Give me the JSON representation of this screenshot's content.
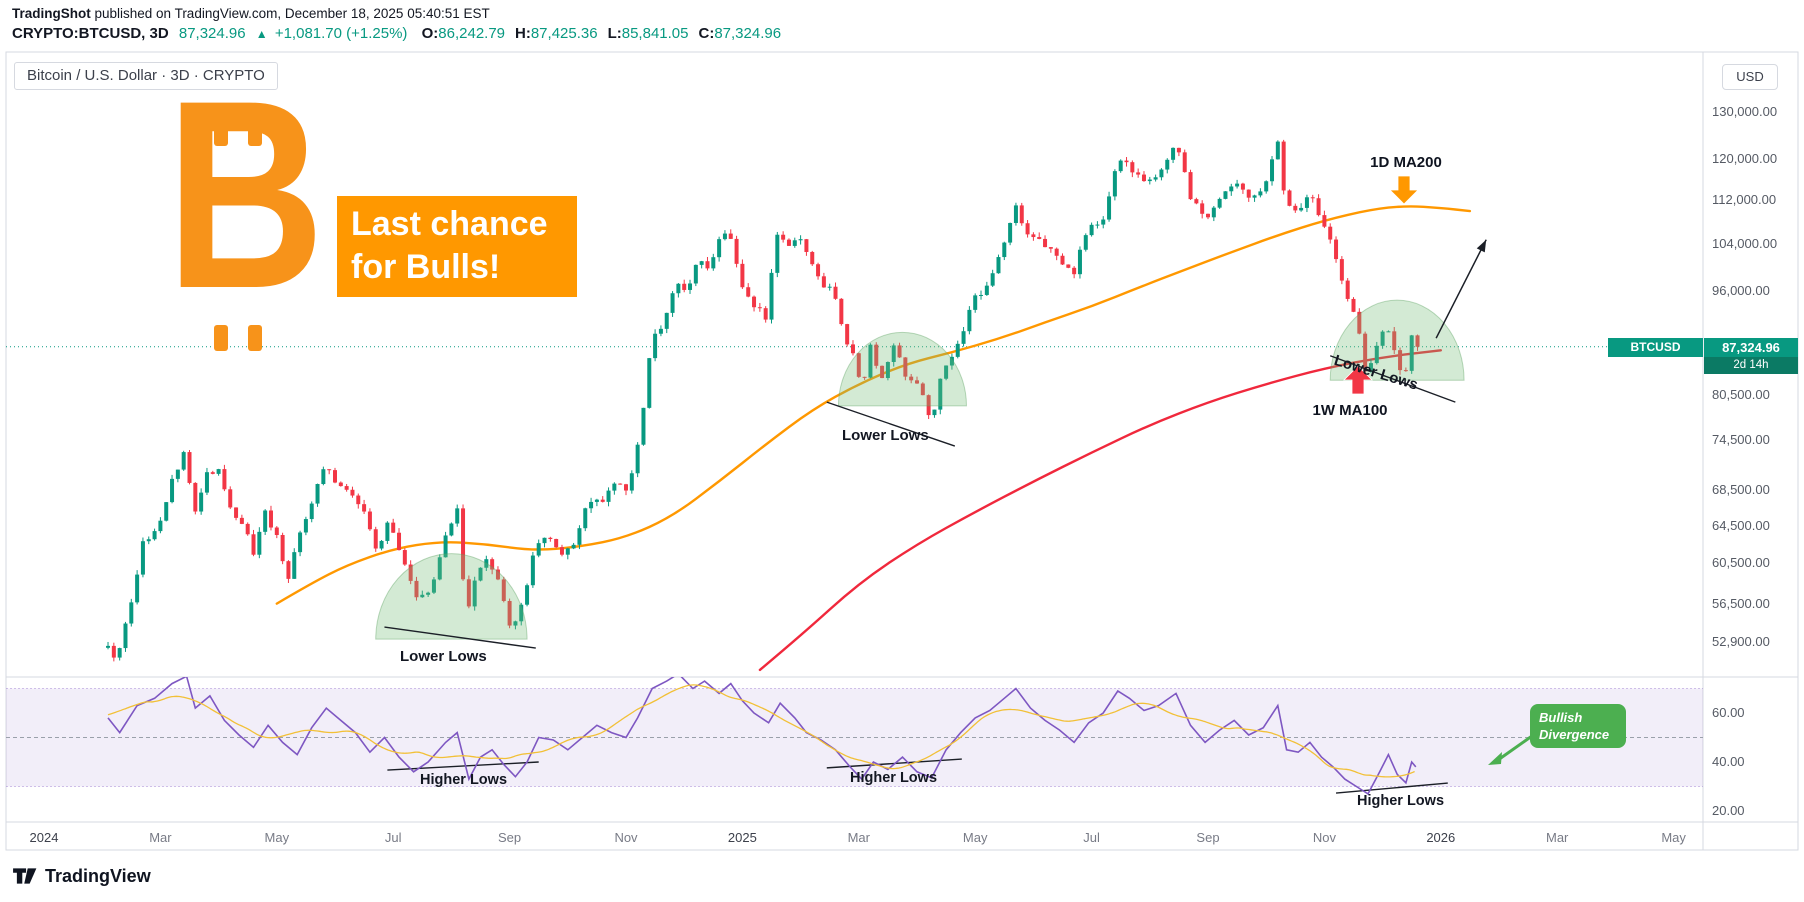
{
  "meta": {
    "publisher": "TradingShot",
    "published_suffix": " published on TradingView.com, December 18, 2025 05:40:51 EST"
  },
  "quote_bar": {
    "symbol_interval": "CRYPTO:BTCUSD, 3D",
    "price": "87,324.96",
    "direction_arrow": "▲",
    "change": "+1,081.70 (+1.25%)",
    "ohlc": [
      {
        "label": "O",
        "value": "86,242.79"
      },
      {
        "label": "H",
        "value": "87,425.36"
      },
      {
        "label": "L",
        "value": "85,841.05"
      },
      {
        "label": "C",
        "value": "87,324.96"
      }
    ]
  },
  "chart_header": {
    "legend": "Bitcoin / U.S. Dollar · 3D · CRYPTO"
  },
  "axis": {
    "currency": "USD"
  },
  "price_badge": {
    "symbol": "BTCUSD",
    "price": "87,324.96",
    "countdown": "2d 14h"
  },
  "banner": {
    "line1": "Last chance",
    "line2": "for Bulls!"
  },
  "bitcoin_logo": {
    "glyph": "B"
  },
  "annotations": {
    "ma200": "1D MA200",
    "ma100": "1W MA100",
    "lower_lows": "Lower Lows",
    "higher_lows": "Higher Lows",
    "divergence_l1": "Bullish",
    "divergence_l2": "Divergence"
  },
  "footer": {
    "brand": "TradingView"
  },
  "colors": {
    "up": "#089981",
    "down": "#f23645",
    "ma200": "#ff9800",
    "ma100": "#f0283c",
    "rsi": "#7e57c2",
    "rsi_ma": "#f2c037",
    "accent_orange": "#f7931a",
    "divergence_green": "#4caf50",
    "arc_green": "rgba(119,190,122,0.32)",
    "arc_edge": "rgba(90,160,95,0.4)",
    "grid": "#d6d9e0"
  },
  "chart_data": {
    "type": "candlestick",
    "symbol": "BTCUSD",
    "timeframe": "3D",
    "scale": "log",
    "current_price": 87324.96,
    "x_axis": {
      "unit": "months_since_2024_01",
      "labels": [
        {
          "label": "2024",
          "t": 0,
          "year": true
        },
        {
          "label": "Mar",
          "t": 2,
          "year": false
        },
        {
          "label": "May",
          "t": 4,
          "year": false
        },
        {
          "label": "Jul",
          "t": 6,
          "year": false
        },
        {
          "label": "Sep",
          "t": 8,
          "year": false
        },
        {
          "label": "Nov",
          "t": 10,
          "year": false
        },
        {
          "label": "2025",
          "t": 12,
          "year": true
        },
        {
          "label": "Mar",
          "t": 14,
          "year": false
        },
        {
          "label": "May",
          "t": 16,
          "year": false
        },
        {
          "label": "Jul",
          "t": 18,
          "year": false
        },
        {
          "label": "Sep",
          "t": 20,
          "year": false
        },
        {
          "label": "Nov",
          "t": 22,
          "year": false
        },
        {
          "label": "2026",
          "t": 24,
          "year": true
        },
        {
          "label": "Mar",
          "t": 26,
          "year": false
        },
        {
          "label": "May",
          "t": 28,
          "year": false
        }
      ]
    },
    "y_axis": {
      "visible_range": [
        49900,
        142000
      ],
      "ticks": [
        {
          "price": 130000,
          "label": "130,000.00"
        },
        {
          "price": 120000,
          "label": "120,000.00"
        },
        {
          "price": 112000,
          "label": "112,000.00"
        },
        {
          "price": 104000,
          "label": "104,000.00"
        },
        {
          "price": 96000,
          "label": "96,000.00"
        },
        {
          "price": 80500,
          "label": "80,500.00"
        },
        {
          "price": 74500,
          "label": "74,500.00"
        },
        {
          "price": 68500,
          "label": "68,500.00"
        },
        {
          "price": 64500,
          "label": "64,500.00"
        },
        {
          "price": 60500,
          "label": "60,500.00"
        },
        {
          "price": 56500,
          "label": "56,500.00"
        },
        {
          "price": 52900,
          "label": "52,900.00"
        }
      ]
    },
    "price_keyframes": [
      [
        1.1,
        52500
      ],
      [
        1.25,
        51200
      ],
      [
        1.45,
        55500
      ],
      [
        1.7,
        62500
      ],
      [
        1.95,
        64200
      ],
      [
        2.2,
        69500
      ],
      [
        2.42,
        73400
      ],
      [
        2.58,
        66000
      ],
      [
        2.8,
        70300
      ],
      [
        3.0,
        71300
      ],
      [
        3.2,
        66500
      ],
      [
        3.42,
        64800
      ],
      [
        3.6,
        61300
      ],
      [
        3.8,
        65800
      ],
      [
        4.0,
        63300
      ],
      [
        4.18,
        58300
      ],
      [
        4.4,
        63800
      ],
      [
        4.62,
        67300
      ],
      [
        4.82,
        71300
      ],
      [
        5.05,
        69200
      ],
      [
        5.25,
        68300
      ],
      [
        5.5,
        66300
      ],
      [
        5.7,
        61800
      ],
      [
        5.92,
        64800
      ],
      [
        6.15,
        61300
      ],
      [
        6.4,
        57000
      ],
      [
        6.65,
        57800
      ],
      [
        6.9,
        63300
      ],
      [
        7.1,
        66500
      ],
      [
        7.26,
        54800
      ],
      [
        7.42,
        59300
      ],
      [
        7.62,
        61000
      ],
      [
        7.82,
        58800
      ],
      [
        8.02,
        54200
      ],
      [
        8.22,
        56300
      ],
      [
        8.45,
        63000
      ],
      [
        8.7,
        62800
      ],
      [
        8.92,
        61000
      ],
      [
        9.12,
        62800
      ],
      [
        9.35,
        67300
      ],
      [
        9.6,
        66800
      ],
      [
        9.82,
        69800
      ],
      [
        10.05,
        68300
      ],
      [
        10.25,
        75500
      ],
      [
        10.45,
        88500
      ],
      [
        10.65,
        91000
      ],
      [
        10.85,
        97300
      ],
      [
        11.05,
        95800
      ],
      [
        11.25,
        101300
      ],
      [
        11.45,
        99300
      ],
      [
        11.62,
        105800
      ],
      [
        11.82,
        104300
      ],
      [
        11.97,
        97300
      ],
      [
        12.15,
        94300
      ],
      [
        12.4,
        91800
      ],
      [
        12.62,
        106300
      ],
      [
        12.8,
        103300
      ],
      [
        13.0,
        105300
      ],
      [
        13.15,
        101300
      ],
      [
        13.35,
        96800
      ],
      [
        13.55,
        96300
      ],
      [
        13.75,
        88800
      ],
      [
        13.95,
        85300
      ],
      [
        14.05,
        80800
      ],
      [
        14.2,
        87300
      ],
      [
        14.4,
        82800
      ],
      [
        14.6,
        87800
      ],
      [
        14.8,
        83000
      ],
      [
        15.0,
        82300
      ],
      [
        15.25,
        76800
      ],
      [
        15.45,
        84300
      ],
      [
        15.7,
        87300
      ],
      [
        15.95,
        94300
      ],
      [
        16.2,
        96800
      ],
      [
        16.48,
        103300
      ],
      [
        16.7,
        110500
      ],
      [
        16.9,
        105800
      ],
      [
        17.15,
        104300
      ],
      [
        17.42,
        101300
      ],
      [
        17.7,
        99300
      ],
      [
        17.95,
        107300
      ],
      [
        18.2,
        108300
      ],
      [
        18.45,
        120800
      ],
      [
        18.65,
        118000
      ],
      [
        18.9,
        115800
      ],
      [
        19.15,
        117300
      ],
      [
        19.45,
        122800
      ],
      [
        19.7,
        112800
      ],
      [
        19.95,
        108300
      ],
      [
        20.2,
        112300
      ],
      [
        20.45,
        115800
      ],
      [
        20.7,
        112300
      ],
      [
        20.95,
        114300
      ],
      [
        21.2,
        124300
      ],
      [
        21.33,
        111300
      ],
      [
        21.55,
        110300
      ],
      [
        21.75,
        113300
      ],
      [
        21.95,
        107800
      ],
      [
        22.15,
        103300
      ],
      [
        22.35,
        96300
      ],
      [
        22.55,
        91300
      ],
      [
        22.72,
        83300
      ],
      [
        22.9,
        87300
      ],
      [
        23.05,
        91300
      ],
      [
        23.22,
        86300
      ],
      [
        23.36,
        82300
      ],
      [
        23.5,
        89300
      ],
      [
        23.57,
        87325
      ]
    ],
    "ma_1d_200": [
      [
        4.0,
        56500
      ],
      [
        4.6,
        58500
      ],
      [
        5.2,
        60300
      ],
      [
        6.0,
        62000
      ],
      [
        6.8,
        62800
      ],
      [
        7.6,
        62500
      ],
      [
        8.4,
        61800
      ],
      [
        9.2,
        62200
      ],
      [
        10.0,
        63200
      ],
      [
        10.8,
        65500
      ],
      [
        11.6,
        69500
      ],
      [
        12.4,
        74000
      ],
      [
        13.2,
        78500
      ],
      [
        14.0,
        82000
      ],
      [
        14.8,
        84800
      ],
      [
        15.6,
        86500
      ],
      [
        16.4,
        88500
      ],
      [
        17.2,
        91000
      ],
      [
        18.0,
        93500
      ],
      [
        18.8,
        96500
      ],
      [
        19.6,
        99500
      ],
      [
        20.4,
        102500
      ],
      [
        21.2,
        105500
      ],
      [
        22.0,
        108200
      ],
      [
        22.8,
        110200
      ],
      [
        23.4,
        110900
      ],
      [
        24.0,
        110500
      ],
      [
        24.5,
        109900
      ]
    ],
    "ma_1w_100": [
      [
        12.3,
        50500
      ],
      [
        13.0,
        53500
      ],
      [
        14.0,
        58500
      ],
      [
        15.0,
        62500
      ],
      [
        16.0,
        66000
      ],
      [
        17.0,
        69500
      ],
      [
        18.0,
        73000
      ],
      [
        19.0,
        76500
      ],
      [
        20.0,
        79500
      ],
      [
        21.0,
        82000
      ],
      [
        22.0,
        84200
      ],
      [
        23.0,
        85800
      ],
      [
        24.0,
        86800
      ]
    ],
    "rsi": {
      "band": [
        30,
        70
      ],
      "mid": 50,
      "ticks": [
        {
          "value": 60,
          "label": "60.00"
        },
        {
          "value": 40,
          "label": "40.00"
        },
        {
          "value": 20,
          "label": "20.00"
        }
      ],
      "keyframes": [
        [
          1.1,
          58
        ],
        [
          1.3,
          52
        ],
        [
          1.6,
          63
        ],
        [
          1.9,
          66
        ],
        [
          2.2,
          72
        ],
        [
          2.45,
          75
        ],
        [
          2.6,
          62
        ],
        [
          2.85,
          67
        ],
        [
          3.1,
          57
        ],
        [
          3.35,
          51
        ],
        [
          3.6,
          46
        ],
        [
          3.85,
          55
        ],
        [
          4.1,
          48
        ],
        [
          4.35,
          43
        ],
        [
          4.6,
          54
        ],
        [
          4.85,
          62
        ],
        [
          5.1,
          57
        ],
        [
          5.35,
          52
        ],
        [
          5.6,
          44
        ],
        [
          5.85,
          50
        ],
        [
          6.1,
          42
        ],
        [
          6.35,
          36
        ],
        [
          6.6,
          40
        ],
        [
          6.9,
          48
        ],
        [
          7.1,
          52
        ],
        [
          7.3,
          33
        ],
        [
          7.5,
          42
        ],
        [
          7.7,
          45
        ],
        [
          7.9,
          39
        ],
        [
          8.1,
          34
        ],
        [
          8.3,
          40
        ],
        [
          8.5,
          50
        ],
        [
          8.75,
          49
        ],
        [
          9.0,
          45
        ],
        [
          9.25,
          50
        ],
        [
          9.5,
          55
        ],
        [
          9.75,
          52
        ],
        [
          10.0,
          50
        ],
        [
          10.2,
          58
        ],
        [
          10.45,
          70
        ],
        [
          10.7,
          73
        ],
        [
          10.9,
          76
        ],
        [
          11.15,
          70
        ],
        [
          11.35,
          73
        ],
        [
          11.6,
          68
        ],
        [
          11.8,
          72
        ],
        [
          12.0,
          65
        ],
        [
          12.2,
          60
        ],
        [
          12.45,
          56
        ],
        [
          12.65,
          64
        ],
        [
          12.9,
          58
        ],
        [
          13.1,
          52
        ],
        [
          13.35,
          49
        ],
        [
          13.6,
          45
        ],
        [
          13.85,
          38
        ],
        [
          14.05,
          33
        ],
        [
          14.25,
          40
        ],
        [
          14.5,
          37
        ],
        [
          14.75,
          42
        ],
        [
          15.0,
          36
        ],
        [
          15.25,
          33.5
        ],
        [
          15.5,
          45
        ],
        [
          15.75,
          52
        ],
        [
          16.0,
          58
        ],
        [
          16.25,
          61
        ],
        [
          16.5,
          66
        ],
        [
          16.7,
          70
        ],
        [
          16.95,
          62
        ],
        [
          17.2,
          57
        ],
        [
          17.45,
          53
        ],
        [
          17.7,
          48
        ],
        [
          17.95,
          56
        ],
        [
          18.2,
          60
        ],
        [
          18.45,
          69
        ],
        [
          18.65,
          66
        ],
        [
          18.9,
          61
        ],
        [
          19.15,
          63
        ],
        [
          19.45,
          68
        ],
        [
          19.7,
          55
        ],
        [
          19.95,
          48
        ],
        [
          20.2,
          53
        ],
        [
          20.45,
          57
        ],
        [
          20.7,
          51
        ],
        [
          20.95,
          54
        ],
        [
          21.2,
          63
        ],
        [
          21.35,
          45
        ],
        [
          21.55,
          44
        ],
        [
          21.75,
          48
        ],
        [
          21.95,
          42
        ],
        [
          22.15,
          38
        ],
        [
          22.35,
          33
        ],
        [
          22.55,
          30
        ],
        [
          22.75,
          27
        ],
        [
          22.95,
          36
        ],
        [
          23.1,
          43
        ],
        [
          23.25,
          35
        ],
        [
          23.4,
          31.5
        ],
        [
          23.5,
          40
        ],
        [
          23.57,
          38
        ]
      ]
    },
    "annotations_geometry": {
      "arcs": [
        {
          "t1": 5.7,
          "t2": 8.3,
          "base_price": 53200,
          "top_price": 61500
        },
        {
          "t1": 13.65,
          "t2": 15.85,
          "base_price": 79000,
          "top_price": 89500
        },
        {
          "t1": 22.1,
          "t2": 24.4,
          "base_price": 82500,
          "top_price": 94500
        }
      ],
      "lower_lows_lines": [
        {
          "t1": 5.85,
          "p1": 54300,
          "t2": 8.45,
          "p2": 52400
        },
        {
          "t1": 13.45,
          "p1": 79500,
          "t2": 15.65,
          "p2": 73800
        },
        {
          "t1": 22.1,
          "p1": 86000,
          "t2": 24.25,
          "p2": 79500
        }
      ],
      "higher_lows_lines": [
        {
          "t1": 5.9,
          "v1": 36.7,
          "t2": 8.5,
          "v2": 40.0
        },
        {
          "t1": 13.45,
          "v1": 37.6,
          "t2": 15.77,
          "v2": 41.2
        },
        {
          "t1": 22.2,
          "v1": 27.3,
          "t2": 24.12,
          "v2": 31.4
        }
      ],
      "projection_arrow": {
        "t1": 23.92,
        "p1": 88600,
        "t2": 24.78,
        "p2": 104700
      }
    }
  }
}
